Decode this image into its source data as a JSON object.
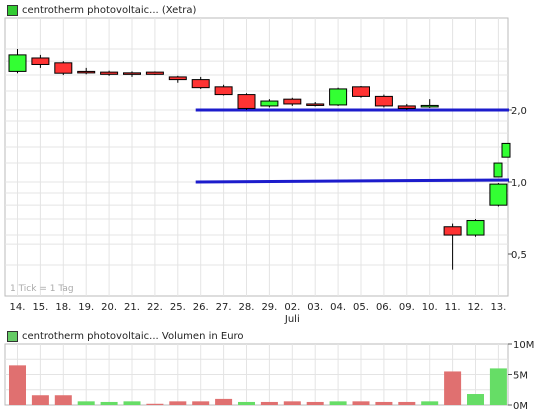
{
  "chart_data": [
    {
      "type": "candlestick",
      "title": "centrotherm photovoltaic... (Xetra)",
      "legend_color": "#33cc33",
      "note": "1 Tick = 1 Tag",
      "x_month_label": "Juli",
      "categories": [
        "14.",
        "15.",
        "18.",
        "19.",
        "20.",
        "21.",
        "22.",
        "25.",
        "26.",
        "27.",
        "28.",
        "29.",
        "02.",
        "03.",
        "04.",
        "05.",
        "06.",
        "09.",
        "10.",
        "11.",
        "12.",
        "13."
      ],
      "y_scale": "log",
      "ylim": [
        0.4,
        3.5
      ],
      "y_ticks": [
        0.5,
        1.0,
        2.0
      ],
      "y_tick_labels": [
        "0,5",
        "1,0",
        "2,0"
      ],
      "candles": [
        {
          "open": 2.9,
          "close": 3.4,
          "high": 3.6,
          "low": 2.85
        },
        {
          "open": 3.3,
          "close": 3.1,
          "high": 3.4,
          "low": 3.0
        },
        {
          "open": 3.15,
          "close": 2.85,
          "high": 3.2,
          "low": 2.8
        },
        {
          "open": 2.9,
          "close": 2.88,
          "high": 3.0,
          "low": 2.82
        },
        {
          "open": 2.88,
          "close": 2.82,
          "high": 2.92,
          "low": 2.78
        },
        {
          "open": 2.86,
          "close": 2.84,
          "high": 2.9,
          "low": 2.75
        },
        {
          "open": 2.88,
          "close": 2.82,
          "high": 2.9,
          "low": 2.8
        },
        {
          "open": 2.75,
          "close": 2.68,
          "high": 2.78,
          "low": 2.6
        },
        {
          "open": 2.68,
          "close": 2.48,
          "high": 2.75,
          "low": 2.45
        },
        {
          "open": 2.5,
          "close": 2.32,
          "high": 2.55,
          "low": 2.3
        },
        {
          "open": 2.32,
          "close": 2.03,
          "high": 2.35,
          "low": 2.0
        },
        {
          "open": 2.08,
          "close": 2.18,
          "high": 2.22,
          "low": 2.05
        },
        {
          "open": 2.22,
          "close": 2.12,
          "high": 2.25,
          "low": 2.08
        },
        {
          "open": 2.12,
          "close": 2.1,
          "high": 2.16,
          "low": 2.07
        },
        {
          "open": 2.1,
          "close": 2.45,
          "high": 2.48,
          "low": 2.08
        },
        {
          "open": 2.5,
          "close": 2.28,
          "high": 2.52,
          "low": 2.25
        },
        {
          "open": 2.28,
          "close": 2.08,
          "high": 2.32,
          "low": 2.05
        },
        {
          "open": 2.08,
          "close": 2.03,
          "high": 2.12,
          "low": 2.0
        },
        {
          "open": 2.07,
          "close": 2.09,
          "high": 2.22,
          "low": 2.04
        },
        {
          "open": 0.65,
          "close": 0.6,
          "high": 0.67,
          "low": 0.43
        },
        {
          "open": 0.6,
          "close": 0.69,
          "high": 0.7,
          "low": 0.59
        },
        {
          "open": 0.8,
          "close": 0.98,
          "high": 0.99,
          "low": 0.79
        }
      ],
      "extra_green_bars": [
        {
          "low": 1.05,
          "high": 1.2
        },
        {
          "low": 1.27,
          "high": 1.45
        }
      ],
      "trendlines": [
        {
          "from": "26.",
          "to": "13.",
          "y_start": 2.0,
          "y_end": 2.0,
          "color": "#1c1ccc"
        },
        {
          "from": "26.",
          "to": "13.",
          "y_start": 1.0,
          "y_end": 1.02,
          "color": "#1c1ccc"
        }
      ]
    },
    {
      "type": "bar",
      "title": "centrotherm photovoltaic... Volumen in Euro",
      "legend_color": "#66cc66",
      "y_ticks": [
        0,
        5,
        10
      ],
      "y_tick_labels": [
        "0M",
        "5M",
        "10M"
      ],
      "ylim": [
        0,
        10
      ],
      "values": [
        6.5,
        1.6,
        1.6,
        0.6,
        0.5,
        0.6,
        0.2,
        0.6,
        0.6,
        1.0,
        0.5,
        0.5,
        0.6,
        0.5,
        0.6,
        0.6,
        0.5,
        0.5,
        0.6,
        5.5,
        1.8,
        6.0
      ],
      "colors": [
        "red",
        "red",
        "red",
        "green",
        "green",
        "green",
        "red",
        "red",
        "red",
        "red",
        "green",
        "red",
        "red",
        "red",
        "green",
        "red",
        "red",
        "red",
        "green",
        "red",
        "green",
        "green"
      ],
      "red_color": "#e07070",
      "green_color": "#66dd66"
    }
  ]
}
